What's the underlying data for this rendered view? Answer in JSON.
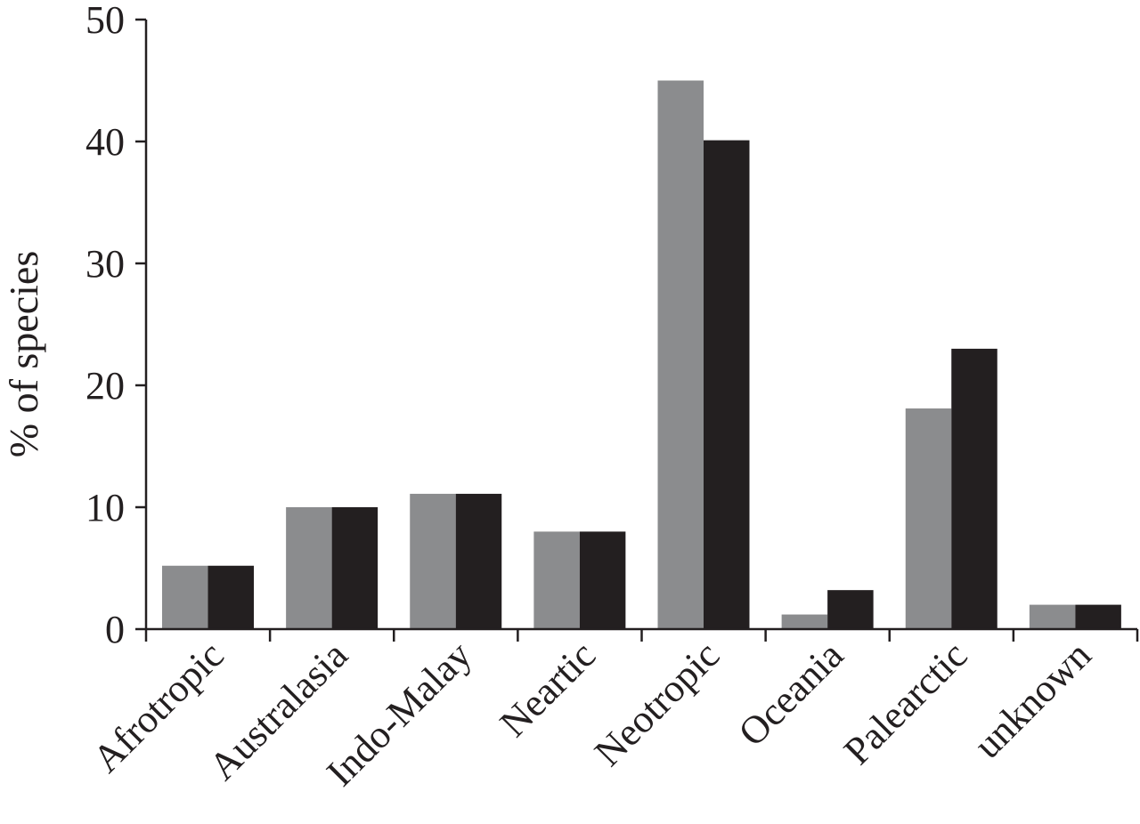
{
  "chart_data": {
    "type": "bar",
    "ylabel": "% of species",
    "xlabel": "",
    "ylim": [
      0,
      50
    ],
    "yticks": [
      0,
      10,
      20,
      30,
      40,
      50
    ],
    "categories": [
      "Afrotropic",
      "Australasia",
      "Indo-Malay",
      "Neartic",
      "Neotropic",
      "Oceania",
      "Palearctic",
      "unknown"
    ],
    "series": [
      {
        "color": "#8b8c8e",
        "values": [
          5.2,
          10,
          11.1,
          8,
          45,
          1.2,
          18.1,
          2
        ]
      },
      {
        "color": "#231f20",
        "values": [
          5.2,
          10,
          11.1,
          8,
          40.1,
          3.2,
          23,
          2
        ]
      }
    ]
  }
}
